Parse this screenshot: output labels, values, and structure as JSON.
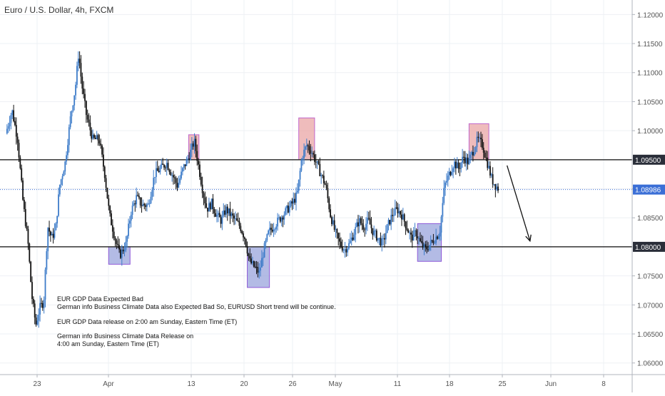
{
  "title": "Euro / U.S. Dollar, 4h, FXCM",
  "colors": {
    "up": "#3d7cc9",
    "down": "#111111",
    "support_box_fill": "#9aa4dc",
    "support_box_stroke": "#8e5ad8",
    "resistance_box_fill": "#eaa6a6",
    "resistance_box_stroke": "#c066cc",
    "level_line": "#333333",
    "price_line": "#3b6fd6",
    "grid": "#eef0f4"
  },
  "chart_data": {
    "type": "candlestick",
    "x_ticks": [
      "23",
      "Apr",
      "13",
      "20",
      "26",
      "May",
      "11",
      "18",
      "25",
      "Jun",
      "8"
    ],
    "y_ticks": [
      "1.12000",
      "1.11500",
      "1.11000",
      "1.10500",
      "1.10000",
      "1.09500",
      "1.09000",
      "1.08500",
      "1.08000",
      "1.07500",
      "1.07000",
      "1.06500",
      "1.06000"
    ],
    "ylim": [
      1.058,
      1.1225
    ],
    "horizontal_levels": [
      {
        "value": 1.095,
        "label": "1.09500"
      },
      {
        "value": 1.08,
        "label": "1.08000"
      }
    ],
    "current_price": {
      "value": 1.08986,
      "label": "1.08986"
    },
    "support_zones": [
      {
        "start_day": 13.0,
        "end_day": 15.7,
        "low": 1.077,
        "high": 1.08
      },
      {
        "start_day": 30.5,
        "end_day": 33.3,
        "low": 1.073,
        "high": 1.08
      },
      {
        "start_day": 52.0,
        "end_day": 55.0,
        "low": 1.0775,
        "high": 1.084
      }
    ],
    "resistance_zones": [
      {
        "start_day": 23.1,
        "end_day": 24.4,
        "low": 1.095,
        "high": 1.0993
      },
      {
        "start_day": 37.0,
        "end_day": 39.0,
        "low": 1.095,
        "high": 1.1022
      },
      {
        "start_day": 58.5,
        "end_day": 61.0,
        "low": 1.095,
        "high": 1.1012
      }
    ],
    "close_path": [
      [
        0,
        1.0995
      ],
      [
        0.8,
        1.1035
      ],
      [
        1.5,
        1.0985
      ],
      [
        2.2,
        1.0875
      ],
      [
        2.8,
        1.081
      ],
      [
        3.3,
        1.0715
      ],
      [
        3.8,
        1.0665
      ],
      [
        4.3,
        1.0695
      ],
      [
        4.8,
        1.0705
      ],
      [
        5.3,
        1.0835
      ],
      [
        5.8,
        1.0815
      ],
      [
        6.3,
        1.083
      ],
      [
        6.8,
        1.0905
      ],
      [
        7.5,
        1.0945
      ],
      [
        8.2,
        1.1025
      ],
      [
        8.8,
        1.1075
      ],
      [
        9.2,
        1.1135
      ],
      [
        9.6,
        1.108
      ],
      [
        10.2,
        1.1025
      ],
      [
        11,
        1.0985
      ],
      [
        11.8,
        1.0985
      ],
      [
        12.5,
        1.0925
      ],
      [
        13.1,
        1.0855
      ],
      [
        13.8,
        1.0815
      ],
      [
        14.4,
        1.0785
      ],
      [
        15.2,
        1.0805
      ],
      [
        15.8,
        1.086
      ],
      [
        16.5,
        1.0885
      ],
      [
        17.2,
        1.0872
      ],
      [
        18,
        1.0872
      ],
      [
        18.8,
        1.0925
      ],
      [
        19.6,
        1.0935
      ],
      [
        20.3,
        1.0945
      ],
      [
        21,
        1.0925
      ],
      [
        21.7,
        1.0905
      ],
      [
        22.4,
        1.0935
      ],
      [
        23.1,
        1.0955
      ],
      [
        23.8,
        1.0982
      ],
      [
        24.4,
        1.0935
      ],
      [
        24.9,
        1.0895
      ],
      [
        25.4,
        1.0865
      ],
      [
        26,
        1.0875
      ],
      [
        26.6,
        1.0855
      ],
      [
        27.2,
        1.0845
      ],
      [
        27.8,
        1.0865
      ],
      [
        28.4,
        1.0855
      ],
      [
        29,
        1.0845
      ],
      [
        29.6,
        1.0835
      ],
      [
        30.2,
        1.0815
      ],
      [
        30.8,
        1.0775
      ],
      [
        31.4,
        1.0765
      ],
      [
        32,
        1.0755
      ],
      [
        32.6,
        1.0795
      ],
      [
        33.2,
        1.0825
      ],
      [
        33.8,
        1.0835
      ],
      [
        34.4,
        1.0845
      ],
      [
        35,
        1.0855
      ],
      [
        35.6,
        1.0865
      ],
      [
        36.2,
        1.0875
      ],
      [
        36.8,
        1.089
      ],
      [
        37.4,
        1.0955
      ],
      [
        38,
        1.0975
      ],
      [
        38.6,
        1.0965
      ],
      [
        39.2,
        1.0945
      ],
      [
        39.8,
        1.0925
      ],
      [
        40.4,
        1.0905
      ],
      [
        41,
        1.0855
      ],
      [
        41.6,
        1.0825
      ],
      [
        42.2,
        1.0805
      ],
      [
        42.8,
        1.0795
      ],
      [
        43.4,
        1.0805
      ],
      [
        44,
        1.0825
      ],
      [
        44.6,
        1.0845
      ],
      [
        45.2,
        1.0835
      ],
      [
        45.8,
        1.0845
      ],
      [
        46.4,
        1.0825
      ],
      [
        47,
        1.0815
      ],
      [
        47.6,
        1.0805
      ],
      [
        48.2,
        1.0835
      ],
      [
        48.8,
        1.0855
      ],
      [
        49.4,
        1.0865
      ],
      [
        50,
        1.0855
      ],
      [
        50.6,
        1.0835
      ],
      [
        51.2,
        1.0815
      ],
      [
        51.8,
        1.0825
      ],
      [
        52.4,
        1.0805
      ],
      [
        53,
        1.0795
      ],
      [
        53.6,
        1.0805
      ],
      [
        54.2,
        1.0815
      ],
      [
        54.8,
        1.0825
      ],
      [
        55.4,
        1.0905
      ],
      [
        56,
        1.0925
      ],
      [
        56.6,
        1.0945
      ],
      [
        57.2,
        1.0935
      ],
      [
        57.8,
        1.0955
      ],
      [
        58.4,
        1.0945
      ],
      [
        59,
        1.0965
      ],
      [
        59.6,
        1.0985
      ],
      [
        60.2,
        1.0975
      ],
      [
        60.8,
        1.0945
      ],
      [
        61.4,
        1.0915
      ],
      [
        61.9,
        1.0905
      ],
      [
        62.3,
        1.08986
      ]
    ],
    "forecast_arrow": {
      "from": [
        63.3,
        1.094
      ],
      "to": [
        66.2,
        1.081
      ]
    },
    "annotations": [
      "EUR GDP Data Expected Bad",
      "German info Business Climate Data also Expected Bad So, EURUSD Short trend will be continue.",
      "EUR GDP Data release on 2:00 am Sunday, Eastern Time (ET)",
      "German info Business Climate Data Release on",
      "4:00 am Sunday, Eastern Time (ET)"
    ]
  }
}
